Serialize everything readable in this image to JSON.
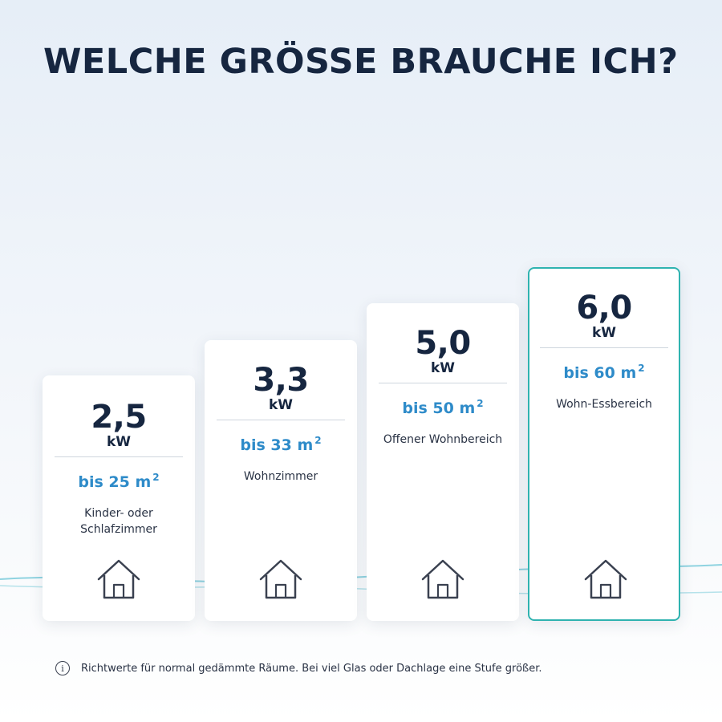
{
  "title": "WELCHE GRÖSSE BRAUCHE ICH?",
  "cards": [
    {
      "value": "2,5",
      "unit": "kW",
      "area": "bis 25 m",
      "area_sup": "2",
      "room": "Kinder- oder Schlafzimmer",
      "icon": "house-icon"
    },
    {
      "value": "3,3",
      "unit": "kW",
      "area": "bis 33 m",
      "area_sup": "2",
      "room": "Wohnzimmer",
      "icon": "house-icon"
    },
    {
      "value": "5,0",
      "unit": "kW",
      "area": "bis 50 m",
      "area_sup": "2",
      "room": "Offener Wohnbereich",
      "icon": "house-icon"
    },
    {
      "value": "6,0",
      "unit": "kW",
      "area": "bis 60 m",
      "area_sup": "2",
      "room": "Wohn-Essbereich",
      "icon": "house-icon"
    }
  ],
  "note": {
    "icon": "info-icon",
    "glyph": "i",
    "text": "Richtwerte für normal gedämmte Räume. Bei viel Glas oder Dachlage eine Stufe größer."
  },
  "colors": {
    "title": "#162640",
    "accent": "#2e8bc9",
    "highlight_border": "#2fb3b0",
    "wave": "#8fd3e0"
  }
}
